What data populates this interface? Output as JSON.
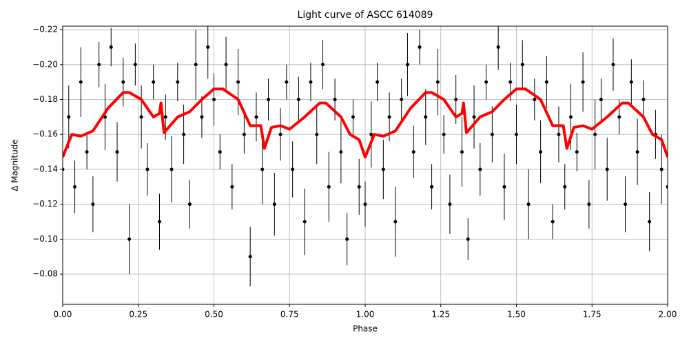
{
  "chart_data": {
    "type": "scatter",
    "title": "Light curve of ASCC 614089",
    "x_label": "Phase",
    "y_label": "Δ Magnitude",
    "xlim": [
      0,
      2
    ],
    "ylim": [
      -0.0627,
      -0.222
    ],
    "xticks": [
      {
        "value": 0,
        "label": "0.00"
      },
      {
        "value": 0.25,
        "label": "0.25"
      },
      {
        "value": 0.5,
        "label": "0.50"
      },
      {
        "value": 0.75,
        "label": "0.75"
      },
      {
        "value": 1,
        "label": "1.00"
      },
      {
        "value": 1.25,
        "label": "1.25"
      },
      {
        "value": 1.5,
        "label": "1.50"
      },
      {
        "value": 1.75,
        "label": "1.75"
      },
      {
        "value": 2,
        "label": "2.00"
      }
    ],
    "yticks": [
      {
        "value": -0.22,
        "label": "−0.22"
      },
      {
        "value": -0.2,
        "label": "−0.20"
      },
      {
        "value": -0.18,
        "label": "−0.18"
      },
      {
        "value": -0.16,
        "label": "−0.16"
      },
      {
        "value": -0.14,
        "label": "−0.14"
      },
      {
        "value": -0.12,
        "label": "−0.12"
      },
      {
        "value": -0.1,
        "label": "−0.10"
      },
      {
        "value": -0.08,
        "label": "−0.08"
      }
    ],
    "grid": true,
    "series": [
      {
        "type": "errorbar",
        "color": "#000000",
        "x": [
          0,
          0.02,
          0.04,
          0.06,
          0.08,
          0.1,
          0.12,
          0.14,
          0.16,
          0.18,
          0.2,
          0.22,
          0.24,
          0.26,
          0.28,
          0.3,
          0.32,
          0.34,
          0.36,
          0.38,
          0.4,
          0.42,
          0.44,
          0.46,
          0.48,
          0.5,
          0.52,
          0.54,
          0.56,
          0.58,
          0.6,
          0.62,
          0.64,
          0.66,
          0.68,
          0.7,
          0.72,
          0.74,
          0.76,
          0.78,
          0.8,
          0.82,
          0.84,
          0.86,
          0.88,
          0.9,
          0.92,
          0.94,
          0.96,
          0.98,
          1,
          1.02,
          1.04,
          1.06,
          1.08,
          1.1,
          1.12,
          1.14,
          1.16,
          1.18,
          1.2,
          1.22,
          1.24,
          1.26,
          1.28,
          1.3,
          1.32,
          1.34,
          1.36,
          1.38,
          1.4,
          1.42,
          1.44,
          1.46,
          1.48,
          1.5,
          1.52,
          1.54,
          1.56,
          1.58,
          1.6,
          1.62,
          1.64,
          1.66,
          1.68,
          1.7,
          1.72,
          1.74,
          1.76,
          1.78,
          1.8,
          1.82,
          1.84,
          1.86,
          1.88,
          1.9,
          1.92,
          1.94,
          1.96,
          1.98,
          2
        ],
        "values": [
          -0.14,
          -0.17,
          -0.13,
          -0.19,
          -0.15,
          -0.12,
          -0.2,
          -0.17,
          -0.21,
          -0.15,
          -0.19,
          -0.1,
          -0.2,
          -0.17,
          -0.14,
          -0.19,
          -0.11,
          -0.17,
          -0.14,
          -0.19,
          -0.16,
          -0.12,
          -0.2,
          -0.17,
          -0.21,
          -0.18,
          -0.15,
          -0.2,
          -0.13,
          -0.19,
          -0.16,
          -0.09,
          -0.17,
          -0.14,
          -0.18,
          -0.12,
          -0.16,
          -0.19,
          -0.14,
          -0.18,
          -0.11,
          -0.19,
          -0.16,
          -0.2,
          -0.13,
          -0.18,
          -0.15,
          -0.1,
          -0.17,
          -0.13,
          -0.12,
          -0.16,
          -0.19,
          -0.14,
          -0.17,
          -0.11,
          -0.18,
          -0.2,
          -0.15,
          -0.21,
          -0.17,
          -0.13,
          -0.19,
          -0.16,
          -0.12,
          -0.18,
          -0.15,
          -0.1,
          -0.17,
          -0.14,
          -0.19,
          -0.16,
          -0.21,
          -0.13,
          -0.19,
          -0.16,
          -0.2,
          -0.12,
          -0.18,
          -0.15,
          -0.19,
          -0.11,
          -0.16,
          -0.13,
          -0.17,
          -0.15,
          -0.19,
          -0.12,
          -0.16,
          -0.18,
          -0.14,
          -0.2,
          -0.17,
          -0.12,
          -0.19,
          -0.15,
          -0.18,
          -0.11,
          -0.16,
          -0.14,
          -0.13
        ],
        "errors": [
          0.012,
          0.018,
          0.015,
          0.02,
          0.01,
          0.016,
          0.013,
          0.019,
          0.011,
          0.017,
          0.014,
          0.02,
          0.012,
          0.018,
          0.015,
          0.01,
          0.016,
          0.013,
          0.019,
          0.011,
          0.017,
          0.014,
          0.02,
          0.012,
          0.018,
          0.015,
          0.01,
          0.016,
          0.013,
          0.019,
          0.011,
          0.017,
          0.014,
          0.02,
          0.012,
          0.018,
          0.015,
          0.01,
          0.016,
          0.013,
          0.019,
          0.011,
          0.017,
          0.014,
          0.02,
          0.012,
          0.018,
          0.015,
          0.01,
          0.016,
          0.013,
          0.019,
          0.011,
          0.017,
          0.014,
          0.02,
          0.012,
          0.018,
          0.015,
          0.01,
          0.016,
          0.013,
          0.019,
          0.011,
          0.017,
          0.014,
          0.02,
          0.012,
          0.018,
          0.015,
          0.01,
          0.016,
          0.013,
          0.019,
          0.011,
          0.017,
          0.014,
          0.02,
          0.012,
          0.018,
          0.015,
          0.01,
          0.016,
          0.013,
          0.019,
          0.011,
          0.017,
          0.014,
          0.02,
          0.012,
          0.018,
          0.015,
          0.01,
          0.016,
          0.013,
          0.019,
          0.011,
          0.017,
          0.014,
          0.02,
          0.012
        ]
      },
      {
        "type": "line",
        "color": "#ff0000",
        "x": [
          0,
          0.03,
          0.06,
          0.1,
          0.15,
          0.2,
          0.22,
          0.26,
          0.3,
          0.32,
          0.325,
          0.335,
          0.38,
          0.42,
          0.46,
          0.5,
          0.53,
          0.58,
          0.62,
          0.655,
          0.667,
          0.69,
          0.72,
          0.75,
          0.8,
          0.85,
          0.87,
          0.92,
          0.95,
          0.98,
          1,
          1.03,
          1.06,
          1.1,
          1.15,
          1.2,
          1.22,
          1.26,
          1.3,
          1.32,
          1.325,
          1.335,
          1.38,
          1.42,
          1.46,
          1.5,
          1.53,
          1.58,
          1.62,
          1.655,
          1.667,
          1.69,
          1.72,
          1.75,
          1.8,
          1.85,
          1.87,
          1.92,
          1.95,
          1.98,
          2
        ],
        "values": [
          -0.147,
          -0.16,
          -0.159,
          -0.162,
          -0.175,
          -0.184,
          -0.184,
          -0.18,
          -0.17,
          -0.172,
          -0.178,
          -0.161,
          -0.17,
          -0.173,
          -0.18,
          -0.186,
          -0.186,
          -0.18,
          -0.165,
          -0.165,
          -0.152,
          -0.164,
          -0.165,
          -0.163,
          -0.17,
          -0.178,
          -0.178,
          -0.17,
          -0.16,
          -0.157,
          -0.147,
          -0.16,
          -0.159,
          -0.162,
          -0.175,
          -0.184,
          -0.184,
          -0.18,
          -0.17,
          -0.172,
          -0.178,
          -0.161,
          -0.17,
          -0.173,
          -0.18,
          -0.186,
          -0.186,
          -0.18,
          -0.165,
          -0.165,
          -0.152,
          -0.164,
          -0.165,
          -0.163,
          -0.17,
          -0.178,
          -0.178,
          -0.17,
          -0.16,
          -0.157,
          -0.147
        ]
      }
    ]
  }
}
